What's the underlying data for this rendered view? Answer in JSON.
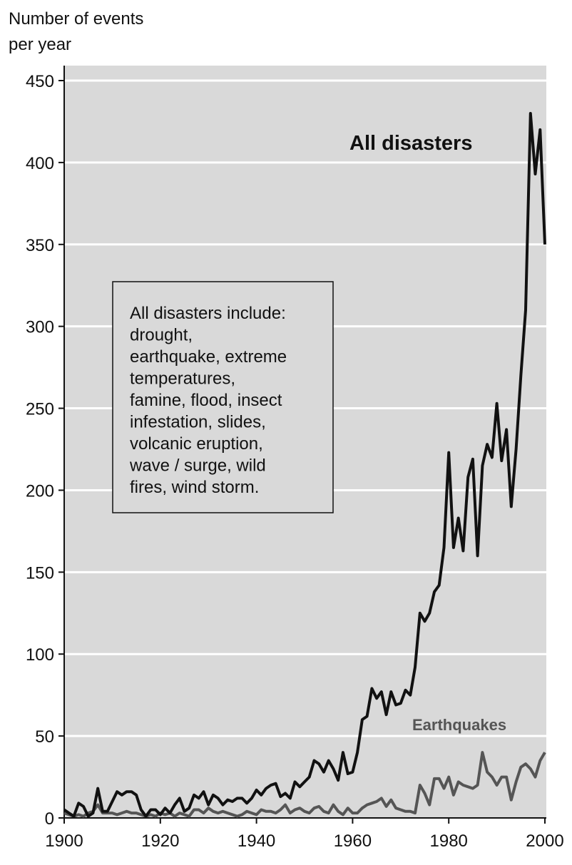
{
  "chart_data": {
    "type": "line",
    "y_axis_label": [
      "Number of events",
      "per year"
    ],
    "x": [
      1900,
      1901,
      1902,
      1903,
      1904,
      1905,
      1906,
      1907,
      1908,
      1909,
      1910,
      1911,
      1912,
      1913,
      1914,
      1915,
      1916,
      1917,
      1918,
      1919,
      1920,
      1921,
      1922,
      1923,
      1924,
      1925,
      1926,
      1927,
      1928,
      1929,
      1930,
      1931,
      1932,
      1933,
      1934,
      1935,
      1936,
      1937,
      1938,
      1939,
      1940,
      1941,
      1942,
      1943,
      1944,
      1945,
      1946,
      1947,
      1948,
      1949,
      1950,
      1951,
      1952,
      1953,
      1954,
      1955,
      1956,
      1957,
      1958,
      1959,
      1960,
      1961,
      1962,
      1963,
      1964,
      1965,
      1966,
      1967,
      1968,
      1969,
      1970,
      1971,
      1972,
      1973,
      1974,
      1975,
      1976,
      1977,
      1978,
      1979,
      1980,
      1981,
      1982,
      1983,
      1984,
      1985,
      1986,
      1987,
      1988,
      1989,
      1990,
      1991,
      1992,
      1993,
      1994,
      1995,
      1996,
      1997,
      1998,
      1999,
      2000
    ],
    "series": [
      {
        "name": "All disasters",
        "color": "#111111",
        "values": [
          5,
          3,
          1,
          9,
          7,
          1,
          3,
          18,
          4,
          4,
          10,
          16,
          14,
          16,
          16,
          14,
          5,
          1,
          5,
          5,
          2,
          6,
          3,
          8,
          12,
          4,
          6,
          14,
          12,
          16,
          8,
          14,
          12,
          8,
          11,
          10,
          12,
          12,
          9,
          12,
          17,
          14,
          18,
          20,
          21,
          13,
          15,
          12,
          22,
          19,
          22,
          25,
          35,
          33,
          28,
          35,
          30,
          23,
          40,
          27,
          28,
          40,
          60,
          62,
          79,
          73,
          77,
          63,
          77,
          69,
          70,
          78,
          75,
          92,
          125,
          120,
          125,
          138,
          142,
          165,
          223,
          165,
          183,
          163,
          208,
          219,
          160,
          215,
          228,
          220,
          253,
          218,
          237,
          190,
          225,
          270,
          310,
          430,
          393,
          420,
          350
        ]
      },
      {
        "name": "Earthquakes",
        "color": "#555555",
        "values": [
          3,
          2,
          1,
          2,
          1,
          3,
          4,
          8,
          3,
          3,
          3,
          2,
          3,
          4,
          3,
          3,
          2,
          1,
          2,
          1,
          3,
          2,
          3,
          1,
          3,
          2,
          1,
          5,
          5,
          3,
          6,
          4,
          3,
          4,
          3,
          2,
          1,
          2,
          4,
          3,
          2,
          5,
          4,
          4,
          3,
          5,
          8,
          3,
          5,
          6,
          4,
          3,
          6,
          7,
          4,
          3,
          8,
          4,
          2,
          6,
          3,
          3,
          6,
          8,
          9,
          10,
          12,
          7,
          11,
          6,
          5,
          4,
          4,
          3,
          20,
          15,
          8,
          24,
          24,
          18,
          25,
          14,
          22,
          20,
          19,
          18,
          20,
          40,
          28,
          25,
          20,
          25,
          25,
          11,
          22,
          31,
          33,
          30,
          25,
          35,
          40
        ]
      }
    ],
    "annotation": [
      "All disasters include:",
      "drought,",
      "earthquake, extreme",
      "temperatures,",
      "famine, flood, insect",
      "infestation, slides,",
      "volcanic eruption,",
      "wave / surge, wild",
      "fires, wind storm."
    ],
    "xlim": [
      1900,
      2000
    ],
    "xticks": [
      1900,
      1920,
      1940,
      1960,
      1980,
      2000
    ],
    "ylim": [
      0,
      450
    ],
    "yticks": [
      0,
      50,
      100,
      150,
      200,
      250,
      300,
      350,
      400,
      450
    ],
    "grid": true
  }
}
